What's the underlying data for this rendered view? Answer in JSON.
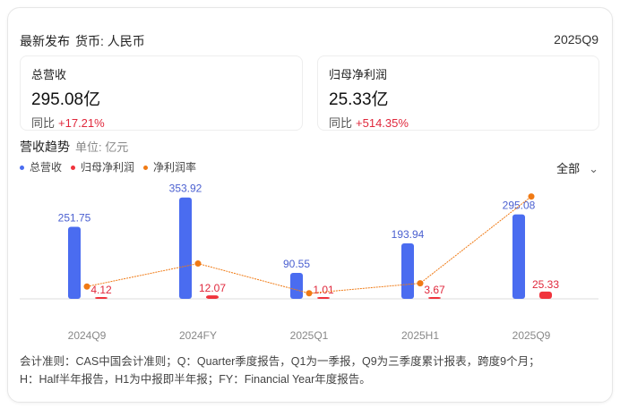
{
  "header": {
    "title": "最新发布",
    "currency": "货币: 人民币",
    "period": "2025Q9"
  },
  "cards": [
    {
      "label": "总营收",
      "value": "295.08亿",
      "yoy_label": "同比",
      "yoy": "+17.21%"
    },
    {
      "label": "归母净利润",
      "value": "25.33亿",
      "yoy_label": "同比",
      "yoy": "+514.35%"
    }
  ],
  "trend": {
    "title": "营收趋势",
    "unit": "单位: 亿元",
    "filter": "全部"
  },
  "chart_data": {
    "type": "bar",
    "categories": [
      "2024Q9",
      "2024FY",
      "2025Q1",
      "2025H1",
      "2025Q9"
    ],
    "series": [
      {
        "name": "总营收",
        "type": "bar",
        "color": "#4a6cf0",
        "values": [
          251.75,
          353.92,
          90.55,
          193.94,
          295.08
        ],
        "labels": [
          "251.75",
          "353.92",
          "90.55",
          "193.94",
          "295.08"
        ]
      },
      {
        "name": "归母净利润",
        "type": "bar",
        "color": "#f0333c",
        "values": [
          4.12,
          12.07,
          1.01,
          3.67,
          25.33
        ],
        "labels": [
          "4.12",
          "12.07",
          "1.01",
          "3.67",
          "25.33"
        ]
      },
      {
        "name": "净利润率",
        "type": "line",
        "color": "#f07a14",
        "values": [
          1.64,
          3.41,
          1.12,
          1.89,
          8.58
        ]
      }
    ],
    "legend": "top-left",
    "grid": false
  },
  "note": [
    "会计准则：CAS中国会计准则；Q：Quarter季度报告，Q1为一季报，Q9为三季度累计报表，跨度9个月；",
    "H：Half半年报告，H1为中报即半年报；FY：Financial Year年度报告。"
  ]
}
